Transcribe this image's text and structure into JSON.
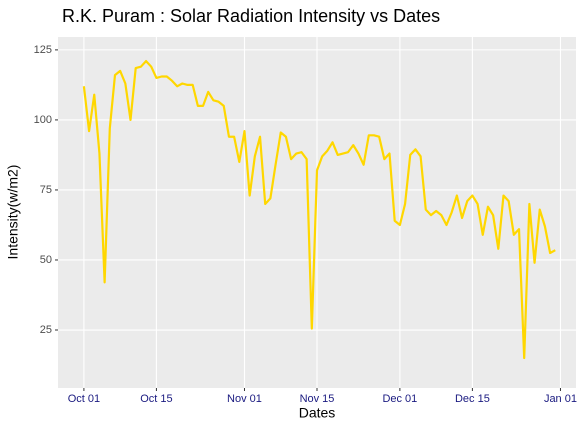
{
  "chart_data": {
    "type": "line",
    "title": "R.K. Puram : Solar Radiation Intensity vs Dates",
    "x_label": "Dates",
    "y_label": "Intensity(w/m2)",
    "x": [
      "10-01",
      "10-02",
      "10-03",
      "10-04",
      "10-05",
      "10-06",
      "10-07",
      "10-08",
      "10-09",
      "10-10",
      "10-11",
      "10-12",
      "10-13",
      "10-14",
      "10-15",
      "10-16",
      "10-17",
      "10-18",
      "10-19",
      "10-20",
      "10-21",
      "10-22",
      "10-23",
      "10-24",
      "10-25",
      "10-26",
      "10-27",
      "10-28",
      "10-29",
      "10-30",
      "10-31",
      "11-01",
      "11-02",
      "11-03",
      "11-04",
      "11-05",
      "11-06",
      "11-07",
      "11-08",
      "11-09",
      "11-10",
      "11-11",
      "11-12",
      "11-13",
      "11-14",
      "11-15",
      "11-16",
      "11-17",
      "11-18",
      "11-19",
      "11-20",
      "11-21",
      "11-22",
      "11-23",
      "11-24",
      "11-25",
      "11-26",
      "11-27",
      "11-28",
      "11-29",
      "11-30",
      "12-01",
      "12-02",
      "12-03",
      "12-04",
      "12-05",
      "12-06",
      "12-07",
      "12-08",
      "12-09",
      "12-10",
      "12-11",
      "12-12",
      "12-13",
      "12-14",
      "12-15",
      "12-16",
      "12-17",
      "12-18",
      "12-19",
      "12-20",
      "12-21",
      "12-22",
      "12-23",
      "12-24",
      "12-25",
      "12-26",
      "12-27",
      "12-28",
      "12-29",
      "12-30",
      "12-31"
    ],
    "series": [
      {
        "name": "Intensity",
        "color": "#ffd700",
        "values": [
          112,
          96,
          109,
          88,
          42,
          97,
          116,
          117.5,
          113,
          100,
          118.5,
          119,
          121,
          119,
          115,
          115.5,
          115.5,
          114,
          112,
          113,
          112.5,
          112.5,
          105,
          105,
          110,
          107,
          106.5,
          105,
          94,
          94,
          85,
          96,
          73,
          87,
          94,
          70,
          72,
          84,
          95.5,
          94,
          86,
          88,
          88.5,
          86,
          25.5,
          82,
          87,
          89,
          92,
          87.5,
          88,
          88.5,
          91,
          88,
          84,
          94.5,
          94.5,
          94,
          86,
          88,
          64,
          62.5,
          70,
          87.5,
          89.5,
          87,
          68,
          66,
          67.5,
          66,
          62.5,
          67,
          73,
          65,
          71,
          73,
          70,
          59,
          69,
          66,
          54,
          73,
          71,
          59,
          61,
          15,
          70,
          49,
          68,
          62,
          52.5,
          53.5
        ]
      }
    ],
    "xlim": [
      "09-26",
      "01-04"
    ],
    "xticks": [
      {
        "value": "10-01",
        "label": "Oct 01"
      },
      {
        "value": "10-15",
        "label": "Oct 15"
      },
      {
        "value": "11-01",
        "label": "Nov 01"
      },
      {
        "value": "11-15",
        "label": "Nov 15"
      },
      {
        "value": "12-01",
        "label": "Dec 01"
      },
      {
        "value": "12-15",
        "label": "Dec 15"
      },
      {
        "value": "01-01",
        "label": "Jan 01"
      }
    ],
    "ylim": [
      4.3,
      129.6
    ],
    "yticks": [
      25,
      50,
      75,
      100,
      125
    ],
    "grid": true
  }
}
